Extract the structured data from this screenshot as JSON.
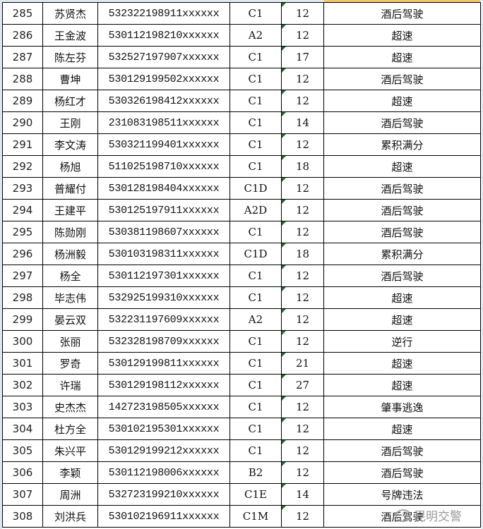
{
  "rows": [
    [
      "285",
      "苏贤杰",
      "532322198911xxxxxx",
      "C1",
      "12",
      "酒后驾驶"
    ],
    [
      "286",
      "王金波",
      "530112198210xxxxxx",
      "A2",
      "12",
      "超速"
    ],
    [
      "287",
      "陈左芬",
      "532527197907xxxxxx",
      "C1",
      "17",
      "超速"
    ],
    [
      "288",
      "曹坤",
      "530129199502xxxxxx",
      "C1",
      "12",
      "酒后驾驶"
    ],
    [
      "289",
      "杨红才",
      "530326198412xxxxxx",
      "C1",
      "12",
      "超速"
    ],
    [
      "290",
      "王刚",
      "231083198511xxxxxx",
      "C1",
      "14",
      "酒后驾驶"
    ],
    [
      "291",
      "李文涛",
      "530321199401xxxxxx",
      "C1",
      "12",
      "累积满分"
    ],
    [
      "292",
      "杨旭",
      "511025198710xxxxxx",
      "C1",
      "18",
      "超速"
    ],
    [
      "293",
      "普耀付",
      "530128198404xxxxxx",
      "C1D",
      "12",
      "酒后驾驶"
    ],
    [
      "294",
      "王建平",
      "530125197911xxxxxx",
      "A2D",
      "12",
      "酒后驾驶"
    ],
    [
      "295",
      "陈勋刚",
      "530381198607xxxxxx",
      "C1",
      "12",
      "酒后驾驶"
    ],
    [
      "296",
      "杨洲毅",
      "530103198311xxxxxx",
      "C1D",
      "18",
      "累积满分"
    ],
    [
      "297",
      "杨全",
      "530112197301xxxxxx",
      "C1",
      "12",
      "酒后驾驶"
    ],
    [
      "298",
      "毕志伟",
      "532925199310xxxxxx",
      "C1",
      "12",
      "超速"
    ],
    [
      "299",
      "晏云双",
      "532231197609xxxxxx",
      "A2",
      "12",
      "超速"
    ],
    [
      "300",
      "张丽",
      "532328198709xxxxxx",
      "C1",
      "12",
      "逆行"
    ],
    [
      "301",
      "罗奇",
      "530129199811xxxxxx",
      "C1",
      "21",
      "超速"
    ],
    [
      "302",
      "许瑞",
      "530129198112xxxxxx",
      "C1",
      "27",
      "超速"
    ],
    [
      "303",
      "史杰杰",
      "142723198505xxxxxx",
      "C1",
      "12",
      "肇事逃逸"
    ],
    [
      "304",
      "杜方全",
      "530102195301xxxxxx",
      "C1",
      "12",
      "超速"
    ],
    [
      "305",
      "朱兴平",
      "530129199212xxxxxx",
      "C1",
      "12",
      "酒后驾驶"
    ],
    [
      "306",
      "李颖",
      "530112198006xxxxxx",
      "B2",
      "12",
      "酒后驾驶"
    ],
    [
      "307",
      "周洲",
      "532723199210xxxxxx",
      "C1E",
      "14",
      "号牌违法"
    ],
    [
      "308",
      "刘洪兵",
      "530102196911xxxxxx",
      "C1M",
      "12",
      "酒后驾驶"
    ]
  ],
  "watermark": {
    "text": "昆明交警",
    "icon": "wechat-icon"
  },
  "colors": {
    "selected_header": "#f3c46b",
    "comment_marker": "#1f6b2a"
  }
}
